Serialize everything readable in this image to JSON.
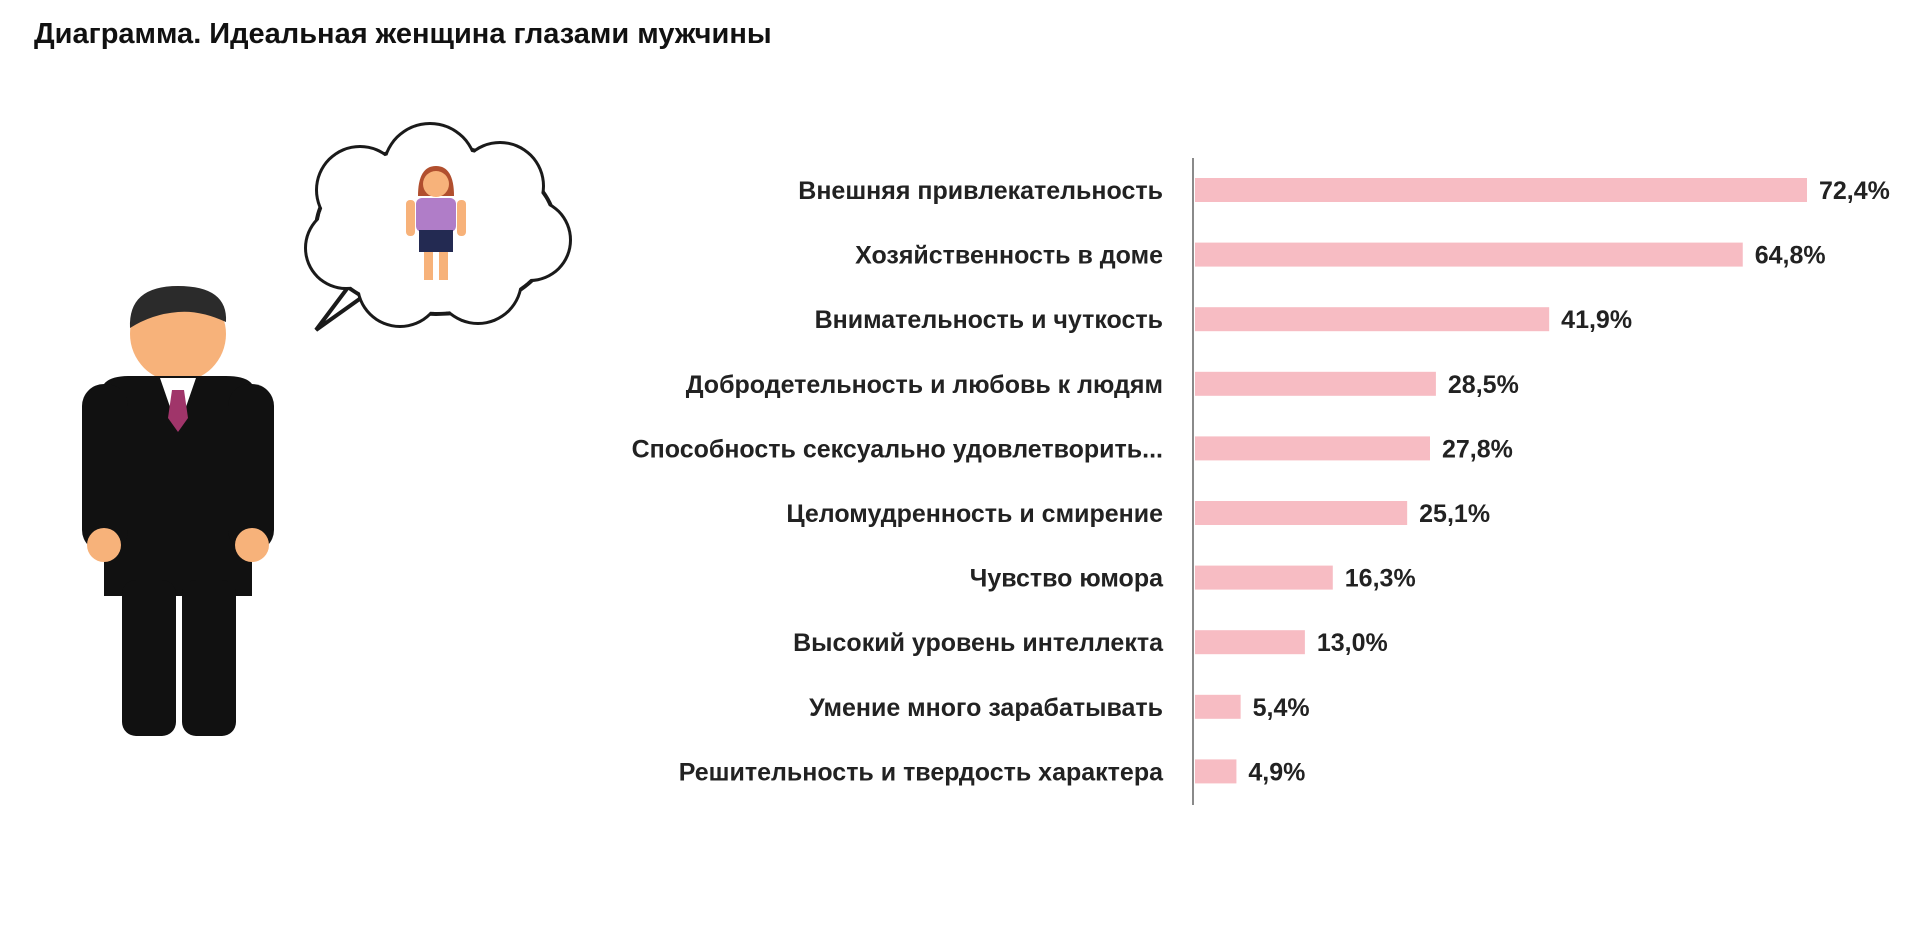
{
  "colors": {
    "bar": "#f7bcc3",
    "axis": "#8a8a8a",
    "suit": "#111111",
    "skin": "#f7b27a",
    "hair": "#2b2b2b",
    "tie": "#a0356a",
    "girl_dress": "#b07dc8",
    "girl_skirt": "#232a52",
    "girl_hair": "#b14f2e"
  },
  "illustration": {
    "man_icon": "businessman-icon",
    "thought_bubble_icon": "thought-bubble-icon",
    "woman_icon": "woman-icon"
  },
  "chart_data": {
    "type": "bar",
    "orientation": "horizontal",
    "title": "Диаграмма. Идеальная женщина глазами мужчины",
    "categories": [
      "Внешняя привлекательность",
      "Хозяйственность в доме",
      "Внимательность и чуткость",
      "Добродетельность и любовь к людям",
      "Способность сексуально удовлетворить...",
      "Целомудренность и смирение",
      "Чувство юмора",
      "Высокий уровень интеллекта",
      "Умение много зарабатывать",
      "Решительность и твердость характера"
    ],
    "values": [
      72.4,
      64.8,
      41.9,
      28.5,
      27.8,
      25.1,
      16.3,
      13.0,
      5.4,
      4.9
    ],
    "value_labels": [
      "72,4%",
      "64,8%",
      "41,9%",
      "28,5%",
      "27,8%",
      "25,1%",
      "16,3%",
      "13,0%",
      "5,4%",
      "4,9%"
    ],
    "unit": "%",
    "xlim": [
      0,
      72.4
    ],
    "grid": false,
    "legend": "none"
  }
}
